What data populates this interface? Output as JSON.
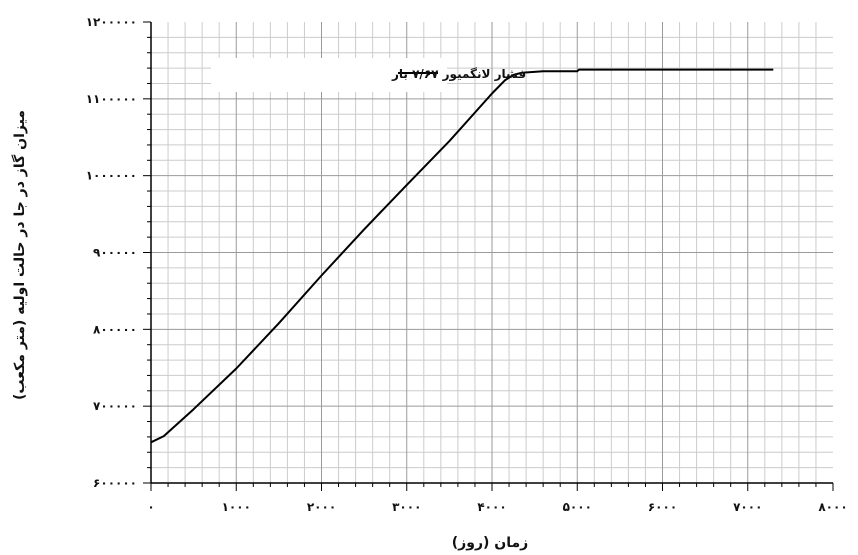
{
  "chart_data": {
    "type": "line",
    "title": "",
    "xlabel": "زمان (روز)",
    "ylabel": "میزان گاز در جا در حالت اولیه (متر مکعب)",
    "xlim": [
      0,
      8000
    ],
    "ylim": [
      600000,
      1200000
    ],
    "grid": true,
    "x_ticks": [
      0,
      1000,
      2000,
      3000,
      4000,
      5000,
      6000,
      7000,
      8000
    ],
    "x_tick_labels": [
      "٠",
      "١٠٠٠",
      "٢٠٠٠",
      "٣٠٠٠",
      "۴٠٠٠",
      "۵٠٠٠",
      "۶٠٠٠",
      "٧٠٠٠",
      "٨٠٠٠"
    ],
    "y_ticks": [
      600000,
      700000,
      800000,
      900000,
      1000000,
      1100000,
      1200000
    ],
    "y_tick_labels": [
      "۶٠٠٠٠٠",
      "٧٠٠٠٠٠",
      "٨٠٠٠٠٠",
      "٩٠٠٠٠٠",
      "١٠٠٠٠٠٠",
      "١١٠٠٠٠٠",
      "١٢٠٠٠٠٠"
    ],
    "legend_position": "top-left",
    "series": [
      {
        "name": "فشار لانگمیور ۷/۶۷ بار",
        "color": "#000000",
        "x": [
          0,
          150,
          500,
          1000,
          1500,
          2000,
          2500,
          3000,
          3500,
          4000,
          4150,
          4250,
          4350,
          4600,
          5000,
          5020,
          6000,
          7000,
          7300
        ],
        "y": [
          653000,
          661000,
          696000,
          749000,
          808000,
          870000,
          930000,
          988000,
          1045000,
          1107000,
          1124000,
          1131000,
          1134000,
          1136000,
          1136000,
          1138000,
          1138000,
          1138000,
          1138000
        ]
      }
    ]
  }
}
